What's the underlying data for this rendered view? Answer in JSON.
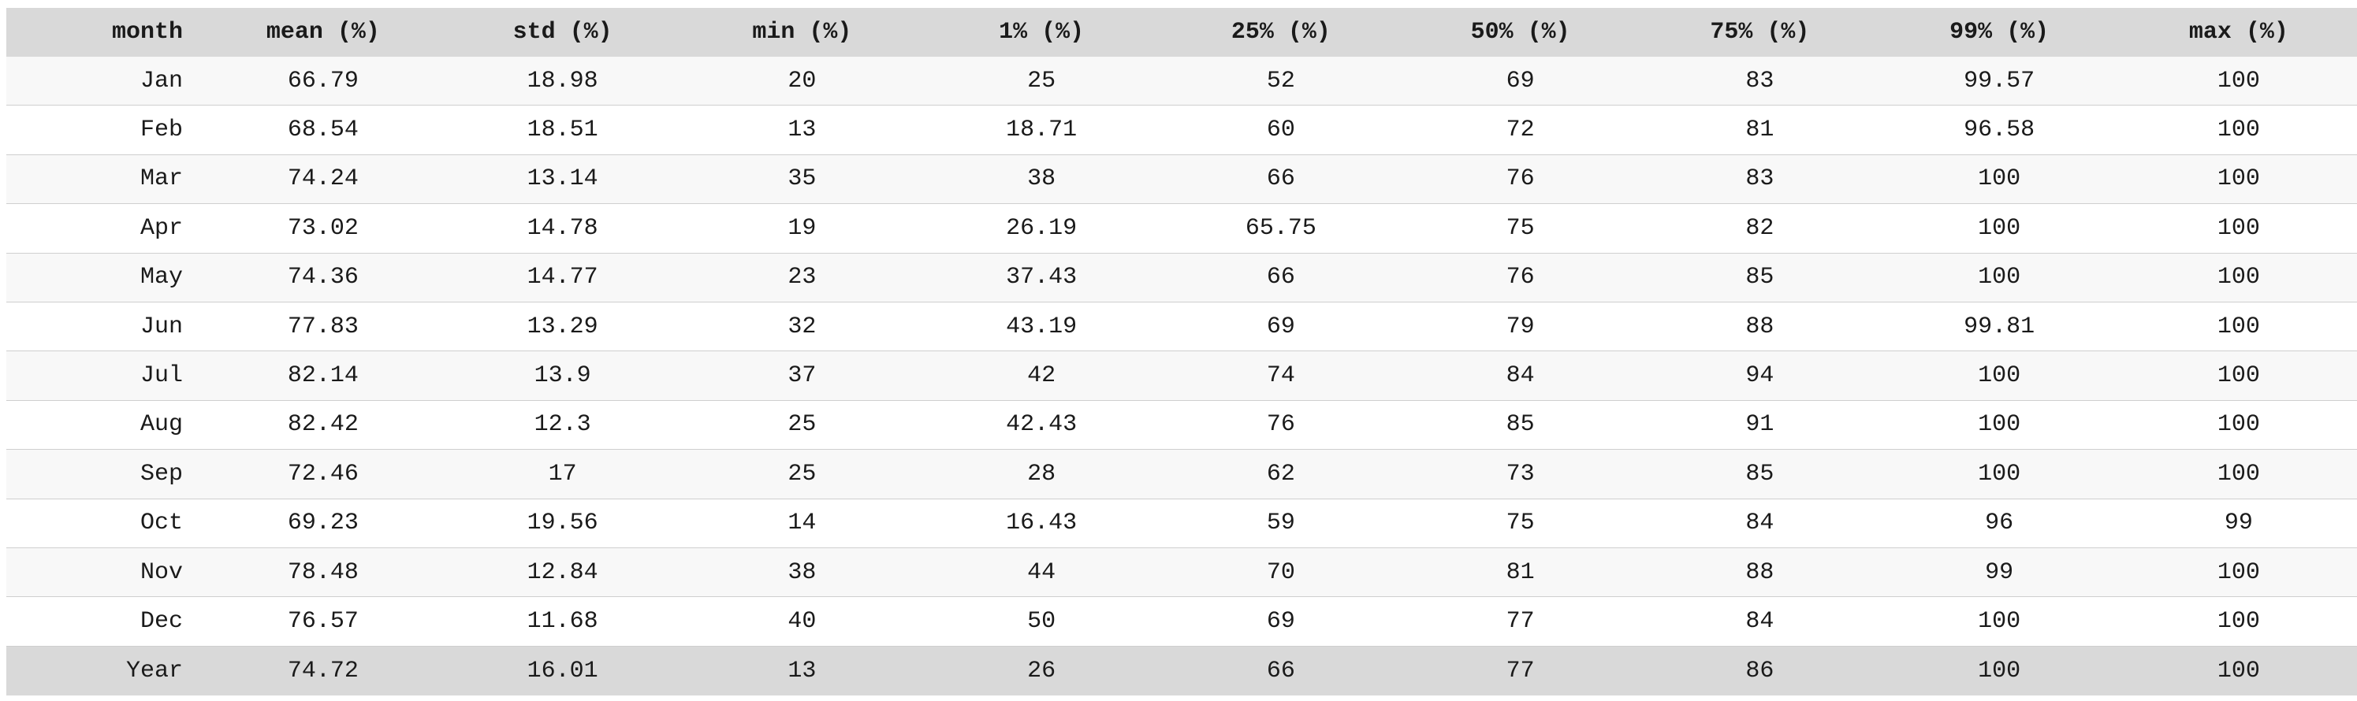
{
  "chart_data": {
    "type": "table",
    "columns": [
      "month",
      "mean (%)",
      "std (%)",
      "min (%)",
      "1% (%)",
      "25% (%)",
      "50% (%)",
      "75% (%)",
      "99% (%)",
      "max (%)"
    ],
    "rows": [
      [
        "Jan",
        "66.79",
        "18.98",
        "20",
        "25",
        "52",
        "69",
        "83",
        "99.57",
        "100"
      ],
      [
        "Feb",
        "68.54",
        "18.51",
        "13",
        "18.71",
        "60",
        "72",
        "81",
        "96.58",
        "100"
      ],
      [
        "Mar",
        "74.24",
        "13.14",
        "35",
        "38",
        "66",
        "76",
        "83",
        "100",
        "100"
      ],
      [
        "Apr",
        "73.02",
        "14.78",
        "19",
        "26.19",
        "65.75",
        "75",
        "82",
        "100",
        "100"
      ],
      [
        "May",
        "74.36",
        "14.77",
        "23",
        "37.43",
        "66",
        "76",
        "85",
        "100",
        "100"
      ],
      [
        "Jun",
        "77.83",
        "13.29",
        "32",
        "43.19",
        "69",
        "79",
        "88",
        "99.81",
        "100"
      ],
      [
        "Jul",
        "82.14",
        "13.9",
        "37",
        "42",
        "74",
        "84",
        "94",
        "100",
        "100"
      ],
      [
        "Aug",
        "82.42",
        "12.3",
        "25",
        "42.43",
        "76",
        "85",
        "91",
        "100",
        "100"
      ],
      [
        "Sep",
        "72.46",
        "17",
        "25",
        "28",
        "62",
        "73",
        "85",
        "100",
        "100"
      ],
      [
        "Oct",
        "69.23",
        "19.56",
        "14",
        "16.43",
        "59",
        "75",
        "84",
        "96",
        "99"
      ],
      [
        "Nov",
        "78.48",
        "12.84",
        "38",
        "44",
        "70",
        "81",
        "88",
        "99",
        "100"
      ],
      [
        "Dec",
        "76.57",
        "11.68",
        "40",
        "50",
        "69",
        "77",
        "84",
        "100",
        "100"
      ]
    ],
    "summary_row": [
      "Year",
      "74.72",
      "16.01",
      "13",
      "26",
      "66",
      "77",
      "86",
      "100",
      "100"
    ]
  },
  "colors": {
    "header_background": "#d9d9d9",
    "row_stripe": "#f8f8f8",
    "row_background": "#ffffff",
    "summary_background": "#d9d9d9",
    "row_divider": "#cfcfcf"
  }
}
